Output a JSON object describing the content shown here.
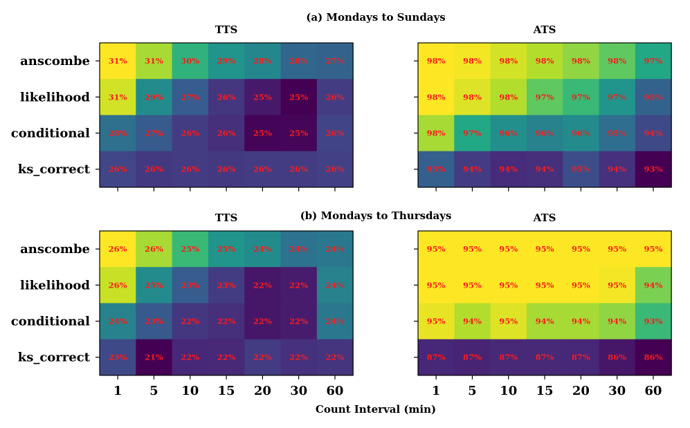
{
  "title_a": "(a) Mondays to Sundays",
  "title_b": "(b) Mondays to Thursdays",
  "xlabel": "Count Interval (min)",
  "accent_text_color": "#ff1a1a",
  "row_labels": [
    "anscombe",
    "likelihood",
    "conditional",
    "ks_correct"
  ],
  "col_labels": [
    "1",
    "5",
    "10",
    "15",
    "20",
    "30",
    "60"
  ],
  "chart_data": [
    {
      "type": "heatmap",
      "panel": "(a) Mondays to Sundays",
      "title": "TTS",
      "rows": [
        "anscombe",
        "likelihood",
        "conditional",
        "ks_correct"
      ],
      "cols": [
        "1",
        "5",
        "10",
        "15",
        "20",
        "30",
        "60"
      ],
      "values": [
        [
          "31%",
          "31%",
          "30%",
          "29%",
          "28%",
          "28%",
          "27%"
        ],
        [
          "31%",
          "29%",
          "27%",
          "26%",
          "25%",
          "25%",
          "26%"
        ],
        [
          "28%",
          "27%",
          "26%",
          "26%",
          "25%",
          "25%",
          "26%"
        ],
        [
          "26%",
          "26%",
          "26%",
          "26%",
          "26%",
          "26%",
          "26%"
        ]
      ],
      "intensity": [
        [
          1.0,
          0.92,
          0.78,
          0.65,
          0.58,
          0.42,
          0.4
        ],
        [
          0.96,
          0.6,
          0.37,
          0.2,
          0.09,
          0.0,
          0.22
        ],
        [
          0.46,
          0.36,
          0.22,
          0.17,
          0.01,
          0.02,
          0.25
        ],
        [
          0.26,
          0.21,
          0.22,
          0.21,
          0.22,
          0.22,
          0.24
        ]
      ]
    },
    {
      "type": "heatmap",
      "panel": "(a) Mondays to Sundays",
      "title": "ATS",
      "rows": [
        "anscombe",
        "likelihood",
        "conditional",
        "ks_correct"
      ],
      "cols": [
        "1",
        "5",
        "10",
        "15",
        "20",
        "30",
        "60"
      ],
      "values": [
        [
          "98%",
          "98%",
          "98%",
          "98%",
          "98%",
          "98%",
          "97%"
        ],
        [
          "98%",
          "98%",
          "98%",
          "97%",
          "97%",
          "97%",
          "95%"
        ],
        [
          "98%",
          "97%",
          "96%",
          "96%",
          "96%",
          "95%",
          "94%"
        ],
        [
          "95%",
          "94%",
          "94%",
          "94%",
          "95%",
          "94%",
          "93%"
        ]
      ],
      "intensity": [
        [
          1.0,
          0.99,
          0.96,
          0.93,
          0.9,
          0.85,
          0.75
        ],
        [
          1.0,
          0.97,
          0.93,
          0.85,
          0.8,
          0.65,
          0.4
        ],
        [
          0.92,
          0.75,
          0.62,
          0.55,
          0.6,
          0.45,
          0.28
        ],
        [
          0.38,
          0.22,
          0.16,
          0.17,
          0.3,
          0.18,
          0.0
        ]
      ]
    },
    {
      "type": "heatmap",
      "panel": "(b) Mondays to Thursdays",
      "title": "TTS",
      "rows": [
        "anscombe",
        "likelihood",
        "conditional",
        "ks_correct"
      ],
      "cols": [
        "1",
        "5",
        "10",
        "15",
        "20",
        "30",
        "60"
      ],
      "values": [
        [
          "26%",
          "26%",
          "25%",
          "25%",
          "24%",
          "24%",
          "24%"
        ],
        [
          "26%",
          "25%",
          "23%",
          "23%",
          "22%",
          "22%",
          "24%"
        ],
        [
          "24%",
          "23%",
          "22%",
          "22%",
          "22%",
          "22%",
          "24%"
        ],
        [
          "23%",
          "21%",
          "22%",
          "22%",
          "22%",
          "22%",
          "22%"
        ]
      ],
      "intensity": [
        [
          1.0,
          0.92,
          0.8,
          0.65,
          0.6,
          0.47,
          0.5
        ],
        [
          0.95,
          0.6,
          0.37,
          0.22,
          0.08,
          0.1,
          0.55
        ],
        [
          0.55,
          0.35,
          0.2,
          0.17,
          0.08,
          0.1,
          0.5
        ],
        [
          0.28,
          0.0,
          0.14,
          0.15,
          0.22,
          0.18,
          0.19
        ]
      ]
    },
    {
      "type": "heatmap",
      "panel": "(b) Mondays to Thursdays",
      "title": "ATS",
      "rows": [
        "anscombe",
        "likelihood",
        "conditional",
        "ks_correct"
      ],
      "cols": [
        "1",
        "5",
        "10",
        "15",
        "20",
        "30",
        "60"
      ],
      "values": [
        [
          "95%",
          "95%",
          "95%",
          "95%",
          "95%",
          "95%",
          "95%"
        ],
        [
          "95%",
          "95%",
          "95%",
          "95%",
          "95%",
          "95%",
          "94%"
        ],
        [
          "95%",
          "94%",
          "95%",
          "94%",
          "94%",
          "94%",
          "93%"
        ],
        [
          "87%",
          "87%",
          "87%",
          "87%",
          "87%",
          "86%",
          "86%"
        ]
      ],
      "intensity": [
        [
          1.0,
          1.0,
          1.0,
          1.0,
          1.0,
          1.0,
          1.0
        ],
        [
          1.0,
          1.0,
          1.0,
          1.0,
          1.0,
          0.99,
          0.88
        ],
        [
          0.98,
          0.93,
          0.97,
          0.92,
          0.92,
          0.9,
          0.8
        ],
        [
          0.14,
          0.13,
          0.15,
          0.15,
          0.14,
          0.08,
          0.0
        ]
      ]
    }
  ]
}
